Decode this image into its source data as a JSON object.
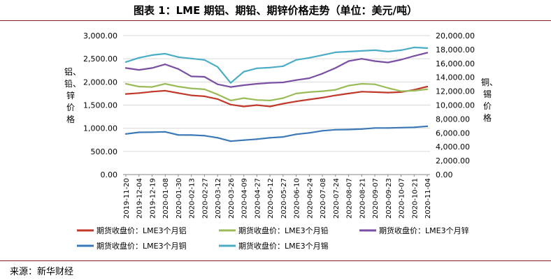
{
  "title": "图表 1：LME 期铝、期铅、期锌价格走势（单位：美元/吨）",
  "source": "来源：新华财经",
  "colors": {
    "aluminum": "#c0392b",
    "lead": "#9bbb59",
    "zinc": "#7a4fa3",
    "copper": "#3a78b8",
    "tin": "#4bacc6",
    "title_rule": "#8a1f1f"
  },
  "chart_data": {
    "type": "line",
    "title": "LME 期铝、期铅、期锌价格走势（单位：美元/吨）",
    "ylabel_left": "铝、铅、锌价格",
    "ylabel_right": "铜、锡价格",
    "ylim_left": [
      0,
      3000
    ],
    "ylim_right": [
      0,
      20000
    ],
    "yticks_left": [
      "0.00",
      "500.00",
      "1,000.00",
      "1,500.00",
      "2,000.00",
      "2,500.00",
      "3,000.00"
    ],
    "yticks_right": [
      "0.00",
      "2,000.00",
      "4,000.00",
      "6,000.00",
      "8,000.00",
      "10,000.00",
      "12,000.00",
      "14,000.00",
      "16,000.00",
      "18,000.00",
      "20,000.00"
    ],
    "x": [
      "2019-11-20",
      "2019-12-04",
      "2019-12-19",
      "2020-01-08",
      "2020-01-30",
      "2020-02-13",
      "2020-02-27",
      "2020-03-12",
      "2020-03-26",
      "2020-04-09",
      "2020-04-27",
      "2020-05-12",
      "2020-05-27",
      "2020-06-10",
      "2020-06-24",
      "2020-07-08",
      "2020-07-24",
      "2020-08-07",
      "2020-08-21",
      "2020-09-07",
      "2020-09-23",
      "2020-10-07",
      "2020-10-21",
      "2020-11-04"
    ],
    "series": [
      {
        "name": "期货收盘价：LME3个月铝",
        "axis": "left",
        "color_key": "aluminum",
        "values": [
          1740,
          1760,
          1790,
          1810,
          1760,
          1710,
          1690,
          1630,
          1510,
          1470,
          1500,
          1470,
          1530,
          1580,
          1620,
          1660,
          1710,
          1750,
          1790,
          1780,
          1770,
          1780,
          1830,
          1900
        ]
      },
      {
        "name": "期货收盘价：LME3个月铅",
        "axis": "left",
        "color_key": "lead",
        "values": [
          1960,
          1900,
          1890,
          1960,
          1900,
          1860,
          1840,
          1730,
          1600,
          1650,
          1610,
          1600,
          1650,
          1750,
          1780,
          1800,
          1830,
          1920,
          1960,
          1950,
          1870,
          1800,
          1810,
          1840
        ]
      },
      {
        "name": "期货收盘价：LME3个月锌",
        "axis": "left",
        "color_key": "zinc",
        "values": [
          2300,
          2260,
          2300,
          2380,
          2280,
          2120,
          2110,
          1950,
          1890,
          1930,
          1960,
          1980,
          1990,
          2040,
          2080,
          2180,
          2300,
          2450,
          2500,
          2450,
          2420,
          2480,
          2560,
          2630
        ]
      },
      {
        "name": "期货收盘价：LME3个月铜",
        "axis": "right",
        "color_key": "copper",
        "values": [
          5850,
          6080,
          6100,
          6150,
          5700,
          5690,
          5600,
          5300,
          4800,
          4950,
          5100,
          5300,
          5420,
          5800,
          6000,
          6300,
          6450,
          6480,
          6550,
          6700,
          6700,
          6750,
          6800,
          6950
        ]
      },
      {
        "name": "期货收盘价：LME3个月锡",
        "axis": "right",
        "color_key": "tin",
        "values": [
          16200,
          16800,
          17200,
          17400,
          16900,
          16700,
          16500,
          15500,
          13200,
          14800,
          15300,
          15400,
          15600,
          16500,
          16800,
          17200,
          17600,
          17700,
          17800,
          17900,
          17700,
          17900,
          18300,
          18200
        ]
      }
    ],
    "legend_position": "bottom"
  }
}
